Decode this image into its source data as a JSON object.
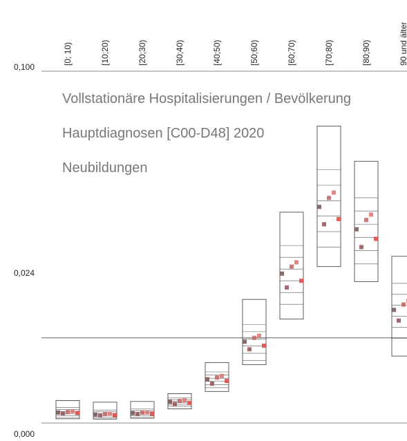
{
  "chart_data": {
    "type": "range_points",
    "title_lines": [
      "Vollstationäre Hospitalisierungen / Bevölkerung",
      "Hauptdiagnosen [C00-D48] 2020",
      "Neubildungen"
    ],
    "categories": [
      "[0; 10)",
      "[10;20)",
      "[20;30)",
      "[30;40)",
      "[40;50)",
      "[50;60)",
      "[60;70)",
      "[70;80)",
      "[80;90)",
      "90 und älter"
    ],
    "box_low": [
      6.4e-05,
      6e-05,
      8e-05,
      0.00047,
      0.0018,
      0.005,
      0.0131,
      0.0259,
      0.0219,
      0.0063
    ],
    "box_high": [
      0.00102,
      0.0009,
      0.00095,
      0.0016,
      0.0053,
      0.0175,
      0.0426,
      0.0754,
      0.0611,
      0.0288
    ],
    "series": [
      {
        "color": "#7a5a5a",
        "values": [
          0.00029,
          0.0002,
          0.00026,
          0.00092,
          0.0031,
          0.0087,
          0.024,
          0.0444,
          0.037,
          0.0151
        ]
      },
      {
        "color": "#9a5a5a",
        "values": [
          0.00025,
          0.00017,
          0.00022,
          0.00078,
          0.0026,
          0.0074,
          0.0204,
          0.0386,
          0.0315,
          0.0128
        ]
      },
      {
        "color": "#c46a6a",
        "values": [
          0.00031,
          0.00022,
          0.00028,
          0.00099,
          0.0033,
          0.0094,
          0.0259,
          0.0475,
          0.04,
          0.0163
        ]
      },
      {
        "color": "#dc7a7a",
        "values": [
          0.00033,
          0.00023,
          0.00029,
          0.00104,
          0.0035,
          0.0098,
          0.0271,
          0.0494,
          0.0418,
          0.0171
        ]
      },
      {
        "color": "#e84a4a",
        "values": [
          0.00027,
          0.00018,
          0.00024,
          0.00085,
          0.0029,
          0.008,
          0.0221,
          0.0403,
          0.034,
          0.0139
        ]
      }
    ],
    "reference_line": 0.0094,
    "ylim": [
      0,
      0.1
    ],
    "yticks": [
      {
        "value": 0,
        "label": "0,000"
      },
      {
        "value": 0.024,
        "label": "0,024"
      },
      {
        "value": 0.1,
        "label": "0,100"
      }
    ],
    "yscale": "power",
    "yexponent": 0.6
  }
}
